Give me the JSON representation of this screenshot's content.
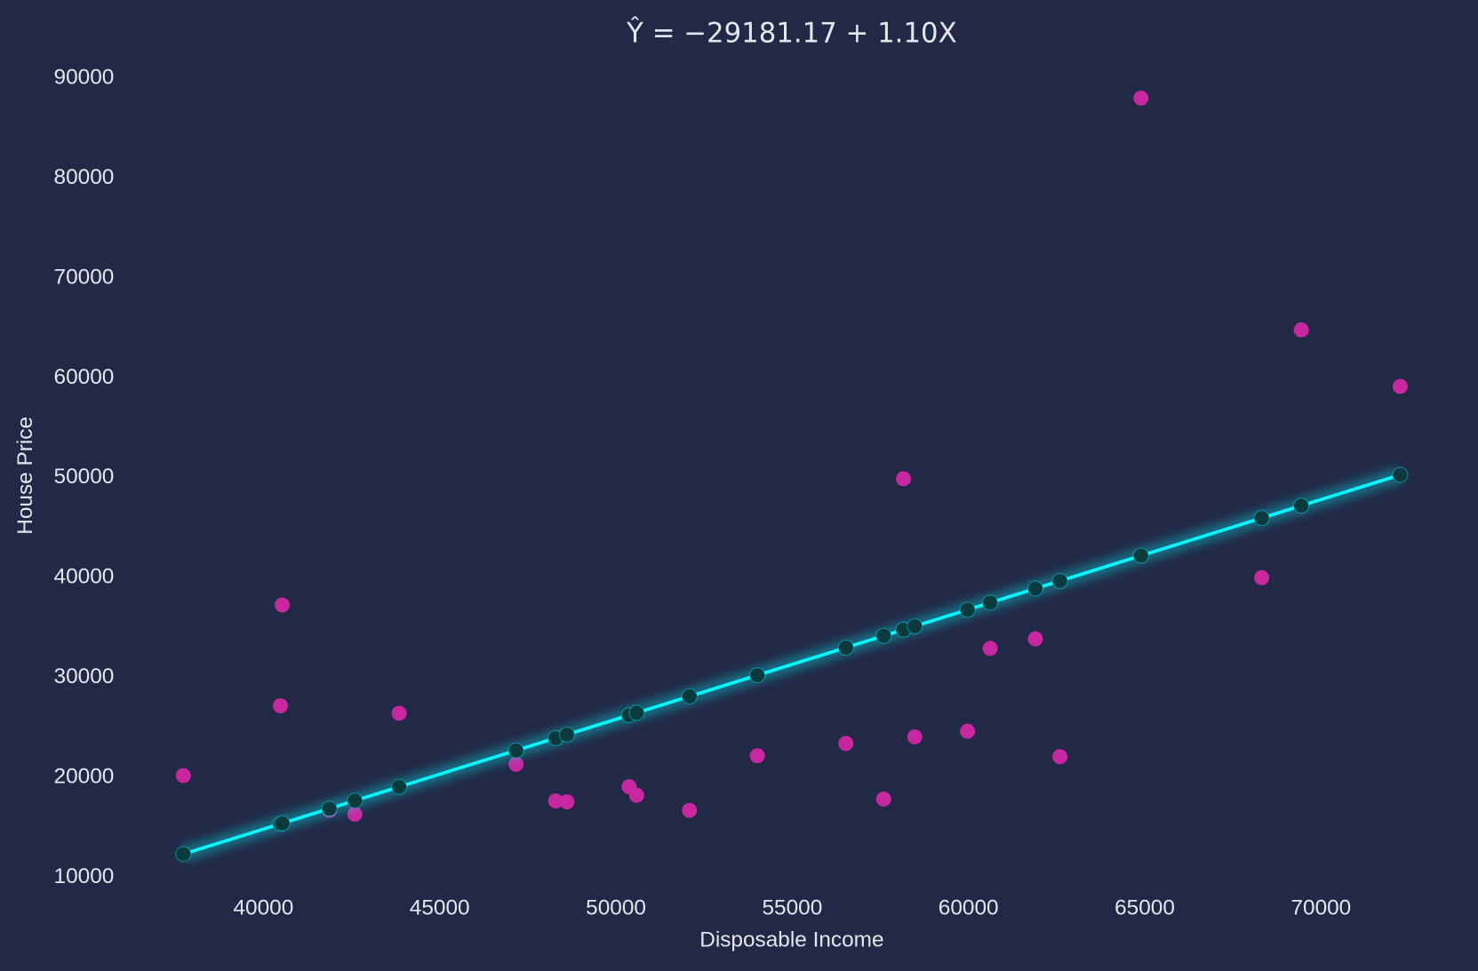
{
  "chart_data": {
    "type": "scatter",
    "title": "Ŷ = −29181.17 + 1.10X",
    "xlabel": "Disposable Income",
    "ylabel": "House Price",
    "x": [
      37730,
      40481,
      40535,
      41872,
      42594,
      43850,
      47166,
      48289,
      48610,
      50374,
      50588,
      52086,
      54011,
      56524,
      57594,
      58155,
      58476,
      59973,
      60615,
      61898,
      62594,
      64893,
      68316,
      69439,
      72246
    ],
    "series": [
      {
        "type": "scatter",
        "color": "#c7289f",
        "values": [
          20190,
          27170,
          37260,
          16700,
          16320,
          26420,
          21320,
          17640,
          17550,
          19060,
          18210,
          16700,
          22170,
          23400,
          17830,
          49910,
          24060,
          24620,
          32920,
          33870,
          22080,
          88020,
          40000,
          64810,
          59150
        ]
      },
      {
        "type": "line",
        "color": "#08f7fe",
        "marker_color": "#0b3a3e",
        "values": [
          12322,
          15348,
          15407,
          16878,
          17672,
          19054,
          22701,
          23937,
          24290,
          26230,
          26466,
          28113,
          30231,
          32995,
          34172,
          34789,
          35142,
          36789,
          37495,
          38907,
          39672,
          42201,
          45966,
          47202,
          50290
        ]
      }
    ],
    "xlim": [
      36004,
      73972
    ],
    "ylim": [
      8537,
      91805
    ],
    "xticks": [
      40000,
      45000,
      50000,
      55000,
      60000,
      65000,
      70000
    ],
    "yticks": [
      10000,
      20000,
      30000,
      40000,
      50000,
      60000,
      70000,
      80000,
      90000
    ],
    "grid": false,
    "background": "#212946"
  }
}
